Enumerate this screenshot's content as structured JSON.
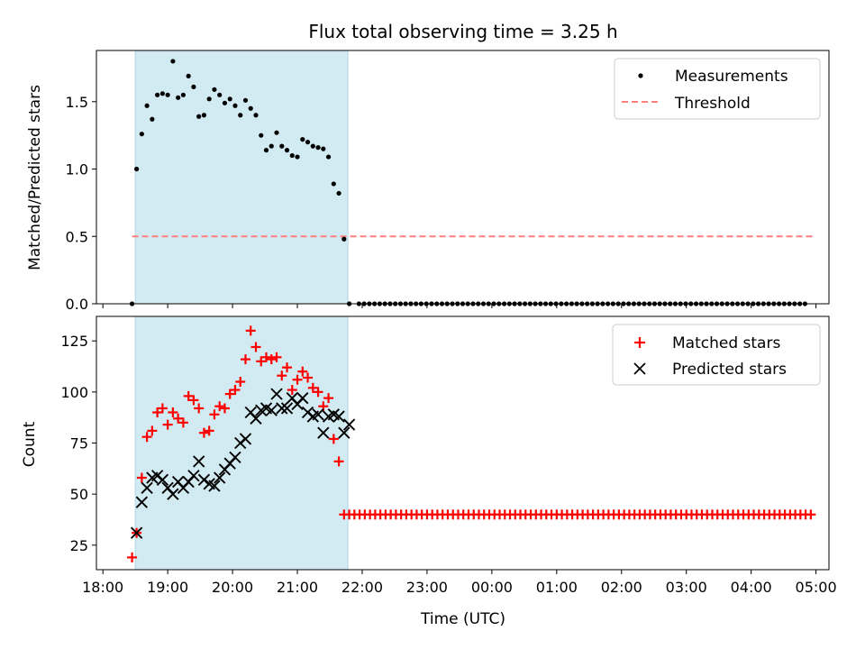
{
  "title": "Flux total observing time = 3.25 h",
  "chart_data": [
    {
      "type": "scatter",
      "panel": "top",
      "ylabel": "Matched/Predicted stars",
      "xlabel": "",
      "x_unit": "time (UTC), hours after 18:00",
      "xlim": [
        -0.1,
        11.2
      ],
      "ylim": [
        0,
        1.88
      ],
      "yticks": [
        0.0,
        0.5,
        1.0,
        1.5
      ],
      "ytick_labels": [
        "0.0",
        "0.5",
        "1.0",
        "1.5"
      ],
      "highlight_span": [
        0.5,
        3.78
      ],
      "legend": {
        "position": "top-right",
        "entries": [
          "Measurements",
          "Threshold"
        ]
      },
      "threshold": {
        "name": "Threshold",
        "value": 0.5,
        "x_range": [
          0.45,
          10.95
        ],
        "color": "#ff7f7f"
      },
      "series": [
        {
          "name": "Measurements",
          "color": "#000000",
          "x": [
            0.45,
            0.52,
            0.6,
            0.68,
            0.76,
            0.84,
            0.92,
            1.0,
            1.08,
            1.16,
            1.24,
            1.32,
            1.4,
            1.48,
            1.56,
            1.64,
            1.72,
            1.8,
            1.88,
            1.96,
            2.04,
            2.12,
            2.2,
            2.28,
            2.36,
            2.44,
            2.52,
            2.6,
            2.68,
            2.76,
            2.84,
            2.92,
            3.0,
            3.08,
            3.16,
            3.24,
            3.32,
            3.4,
            3.48,
            3.56,
            3.64,
            3.72,
            3.8
          ],
          "y": [
            0.0,
            1.0,
            1.26,
            1.47,
            1.37,
            1.55,
            1.56,
            1.55,
            1.8,
            1.53,
            1.55,
            1.69,
            1.61,
            1.39,
            1.4,
            1.52,
            1.59,
            1.55,
            1.49,
            1.52,
            1.47,
            1.4,
            1.51,
            1.45,
            1.4,
            1.25,
            1.14,
            1.17,
            1.27,
            1.17,
            1.14,
            1.1,
            1.09,
            1.22,
            1.2,
            1.17,
            1.16,
            1.15,
            1.09,
            0.89,
            0.82,
            0.48,
            0.0
          ],
          "tail": {
            "x_start": 3.95,
            "x_end": 10.9,
            "step": 0.08,
            "y": 0.0
          }
        }
      ]
    },
    {
      "type": "scatter",
      "panel": "bottom",
      "ylabel": "Count",
      "xlabel": "Time (UTC)",
      "x_unit": "time (UTC), hours after 18:00",
      "xlim": [
        -0.1,
        11.2
      ],
      "ylim": [
        13,
        137
      ],
      "yticks": [
        25,
        50,
        75,
        100,
        125
      ],
      "ytick_labels": [
        "25",
        "50",
        "75",
        "100",
        "125"
      ],
      "xticks": [
        0,
        1,
        2,
        3,
        4,
        5,
        6,
        7,
        8,
        9,
        10,
        11
      ],
      "xtick_labels": [
        "18:00",
        "19:00",
        "20:00",
        "21:00",
        "22:00",
        "23:00",
        "00:00",
        "01:00",
        "02:00",
        "03:00",
        "04:00",
        "05:00"
      ],
      "highlight_span": [
        0.5,
        3.78
      ],
      "legend": {
        "position": "top-right",
        "entries": [
          "Matched stars",
          "Predicted stars"
        ]
      },
      "series": [
        {
          "name": "Matched stars",
          "marker": "plus",
          "color": "#ff0000",
          "x": [
            0.45,
            0.52,
            0.6,
            0.68,
            0.76,
            0.84,
            0.92,
            1.0,
            1.08,
            1.16,
            1.24,
            1.32,
            1.4,
            1.48,
            1.56,
            1.64,
            1.72,
            1.8,
            1.88,
            1.96,
            2.04,
            2.12,
            2.2,
            2.28,
            2.36,
            2.44,
            2.52,
            2.6,
            2.68,
            2.76,
            2.84,
            2.92,
            3.0,
            3.08,
            3.16,
            3.24,
            3.32,
            3.4,
            3.48,
            3.56,
            3.64,
            3.72
          ],
          "y": [
            19,
            31,
            58,
            78,
            81,
            90,
            92,
            84,
            90,
            87,
            85,
            98,
            96,
            92,
            80,
            81,
            89,
            93,
            92,
            99,
            101,
            105,
            116,
            130,
            122,
            115,
            117,
            116,
            117,
            108,
            112,
            101,
            106,
            110,
            107,
            102,
            100,
            93,
            97,
            77,
            66,
            40
          ],
          "tail": {
            "x_start": 3.8,
            "x_end": 10.95,
            "step": 0.08,
            "y": 40
          }
        },
        {
          "name": "Predicted stars",
          "marker": "x",
          "color": "#000000",
          "x": [
            0.52,
            0.6,
            0.68,
            0.76,
            0.84,
            0.92,
            1.0,
            1.08,
            1.16,
            1.24,
            1.32,
            1.4,
            1.48,
            1.56,
            1.64,
            1.72,
            1.8,
            1.88,
            1.96,
            2.04,
            2.12,
            2.2,
            2.28,
            2.36,
            2.44,
            2.52,
            2.6,
            2.68,
            2.76,
            2.84,
            2.92,
            3.0,
            3.08,
            3.16,
            3.24,
            3.32,
            3.4,
            3.48,
            3.56,
            3.64,
            3.72,
            3.8
          ],
          "y": [
            31,
            46,
            53,
            58,
            59,
            57,
            53,
            50,
            56,
            53,
            56,
            59,
            66,
            57,
            55,
            54,
            58,
            62,
            65,
            68,
            75,
            77,
            90,
            87,
            91,
            92,
            91,
            99,
            92,
            92,
            97,
            94,
            97,
            90,
            88,
            89,
            80,
            88,
            89,
            88,
            80,
            84
          ]
        }
      ]
    }
  ]
}
